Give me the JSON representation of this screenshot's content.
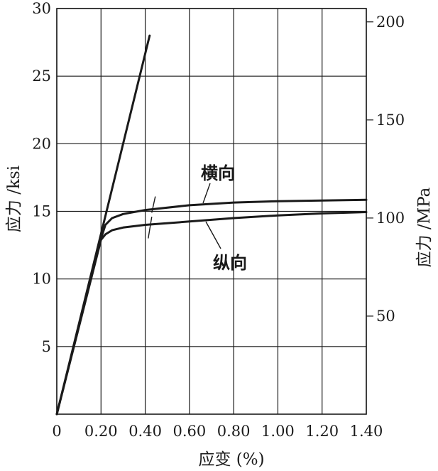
{
  "chart_data": {
    "type": "line",
    "xlabel": "应变 (%)",
    "ylabel_left": "应力 /ksi",
    "ylabel_right": "应力 /MPa",
    "xlim": [
      0,
      1.4
    ],
    "ylim_left": [
      0,
      30
    ],
    "ylim_right_MPa": [
      0,
      206.8
    ],
    "x_ticks": [
      "0",
      "0.20",
      "0.40",
      "0.60",
      "0.80",
      "1.00",
      "1.20",
      "1.40"
    ],
    "y_ticks_left": [
      "5",
      "10",
      "15",
      "20",
      "25",
      "30"
    ],
    "y_ticks_right": [
      "50",
      "100",
      "150",
      "200"
    ],
    "grid": true,
    "series": [
      {
        "name": "横向",
        "x": [
          0,
          0.2,
          0.22,
          0.25,
          0.3,
          0.4,
          0.6,
          0.8,
          1.0,
          1.2,
          1.4
        ],
        "y": [
          0,
          13.0,
          14.0,
          14.5,
          14.8,
          15.1,
          15.45,
          15.65,
          15.75,
          15.8,
          15.85
        ]
      },
      {
        "name": "纵向",
        "x": [
          0,
          0.2,
          0.22,
          0.25,
          0.3,
          0.4,
          0.6,
          0.8,
          1.0,
          1.2,
          1.4
        ],
        "y": [
          0,
          12.9,
          13.3,
          13.6,
          13.8,
          14.0,
          14.25,
          14.5,
          14.7,
          14.85,
          14.95
        ]
      },
      {
        "name": "",
        "x": [
          0,
          0.42
        ],
        "y": [
          0,
          28.0
        ]
      }
    ],
    "annotations": [
      "横向",
      "纵向"
    ]
  }
}
